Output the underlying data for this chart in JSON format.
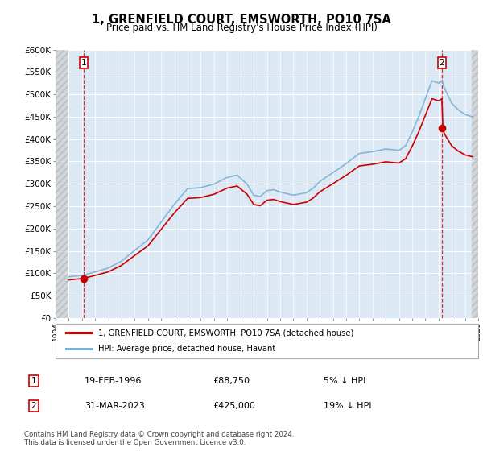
{
  "title": "1, GRENFIELD COURT, EMSWORTH, PO10 7SA",
  "subtitle": "Price paid vs. HM Land Registry's House Price Index (HPI)",
  "legend_line1": "1, GRENFIELD COURT, EMSWORTH, PO10 7SA (detached house)",
  "legend_line2": "HPI: Average price, detached house, Havant",
  "footnote": "Contains HM Land Registry data © Crown copyright and database right 2024.\nThis data is licensed under the Open Government Licence v3.0.",
  "sale1_date": "19-FEB-1996",
  "sale1_price": "£88,750",
  "sale1_hpi": "5% ↓ HPI",
  "sale2_date": "31-MAR-2023",
  "sale2_price": "£425,000",
  "sale2_hpi": "19% ↓ HPI",
  "sale1_year": 1996.12,
  "sale1_value": 88750,
  "sale2_year": 2023.25,
  "sale2_value": 425000,
  "xmin": 1994,
  "xmax": 2026,
  "ymin": 0,
  "ymax": 600000,
  "yticks": [
    0,
    50000,
    100000,
    150000,
    200000,
    250000,
    300000,
    350000,
    400000,
    450000,
    500000,
    550000,
    600000
  ],
  "ytick_labels": [
    "£0",
    "£50K",
    "£100K",
    "£150K",
    "£200K",
    "£250K",
    "£300K",
    "£350K",
    "£400K",
    "£450K",
    "£500K",
    "£550K",
    "£600K"
  ],
  "line_red": "#cc0000",
  "line_blue": "#7ab0d4",
  "bg_color": "#dce9f5",
  "grid_color": "#ffffff",
  "sale_marker_color": "#cc0000",
  "box_color": "#cc0000",
  "data_start_year": 1995.0,
  "data_end_year": 2025.5
}
